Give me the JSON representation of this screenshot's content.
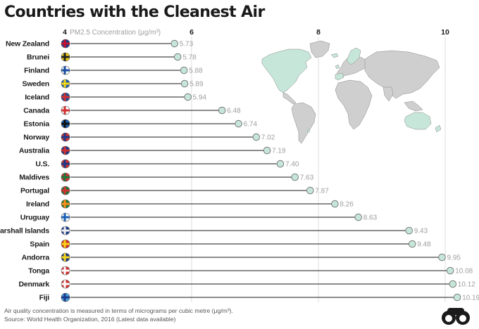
{
  "chart_data": {
    "type": "lollipop",
    "title": "Countries with the Cleanest Air",
    "xlabel": "PM2.5 Concentration (μg/m³)",
    "xticks": [
      4,
      6,
      8,
      10
    ],
    "xlim": [
      4,
      10.4
    ],
    "categories": [
      "New Zealand",
      "Brunei",
      "Finland",
      "Sweden",
      "Iceland",
      "Canada",
      "Estonia",
      "Norway",
      "Australia",
      "U.S.",
      "Maldives",
      "Portugal",
      "Ireland",
      "Uruguay",
      "Marshall Islands",
      "Spain",
      "Andorra",
      "Tonga",
      "Denmark",
      "Fiji"
    ],
    "values": [
      5.73,
      5.78,
      5.88,
      5.89,
      5.94,
      6.48,
      6.74,
      7.02,
      7.19,
      7.4,
      7.63,
      7.87,
      8.26,
      8.63,
      9.43,
      9.48,
      9.95,
      10.08,
      10.12,
      10.19
    ],
    "value_labels": [
      "5.73",
      "5.78",
      "5.88",
      "5.89",
      "5.94",
      "6.48",
      "6.74",
      "7.02",
      "7.19",
      "7.40",
      "7.63",
      "7.87",
      "8.26",
      "8.63",
      "9.43",
      "9.48",
      "9.95",
      "10.08",
      "10.12",
      "10.19"
    ],
    "flags": [
      {
        "country": "New Zealand",
        "colors": [
          "#1a3a8a",
          "#c8102e"
        ]
      },
      {
        "country": "Brunei",
        "colors": [
          "#f7d417",
          "#222222"
        ]
      },
      {
        "country": "Finland",
        "colors": [
          "#ffffff",
          "#1a4fa0"
        ]
      },
      {
        "country": "Sweden",
        "colors": [
          "#1a5fb4",
          "#f7d417"
        ]
      },
      {
        "country": "Iceland",
        "colors": [
          "#1a4fa0",
          "#d32f2f"
        ]
      },
      {
        "country": "Canada",
        "colors": [
          "#ffffff",
          "#d32f2f"
        ]
      },
      {
        "country": "Estonia",
        "colors": [
          "#1a5fb4",
          "#111111"
        ]
      },
      {
        "country": "Norway",
        "colors": [
          "#d32f2f",
          "#1a3a8a"
        ]
      },
      {
        "country": "Australia",
        "colors": [
          "#1a3a8a",
          "#d32f2f"
        ]
      },
      {
        "country": "U.S.",
        "colors": [
          "#d32f2f",
          "#1a3a8a"
        ]
      },
      {
        "country": "Maldives",
        "colors": [
          "#d32f2f",
          "#1b7a3a"
        ]
      },
      {
        "country": "Portugal",
        "colors": [
          "#1b7a3a",
          "#d32f2f"
        ]
      },
      {
        "country": "Ireland",
        "colors": [
          "#1b7a3a",
          "#ff8c1a"
        ]
      },
      {
        "country": "Uruguay",
        "colors": [
          "#ffffff",
          "#1a5fb4"
        ]
      },
      {
        "country": "Marshall Islands",
        "colors": [
          "#1a3a8a",
          "#f0f0f0"
        ]
      },
      {
        "country": "Spain",
        "colors": [
          "#d32f2f",
          "#f7d417"
        ]
      },
      {
        "country": "Andorra",
        "colors": [
          "#1a3a8a",
          "#f7d417"
        ]
      },
      {
        "country": "Tonga",
        "colors": [
          "#d32f2f",
          "#ffffff"
        ]
      },
      {
        "country": "Denmark",
        "colors": [
          "#d32f2f",
          "#ffffff"
        ]
      },
      {
        "country": "Fiji",
        "colors": [
          "#4aa3df",
          "#1a3a8a"
        ]
      }
    ],
    "colors": {
      "dot_fill": "#c6e6d9",
      "dot_stroke": "#6e6e6e",
      "line": "#1a1a1a",
      "grid": "#dddddd",
      "map_land": "#cfcfcf",
      "map_highlight": "#c6e6d9"
    }
  },
  "footer": {
    "note": "Air quality concentration is measured in terms of micrograms per cubic metre (μg/m³).",
    "source": "Source: World Health Organization, 2016 (Latest data available)"
  },
  "logo": {
    "icon": "binoculars-icon"
  }
}
